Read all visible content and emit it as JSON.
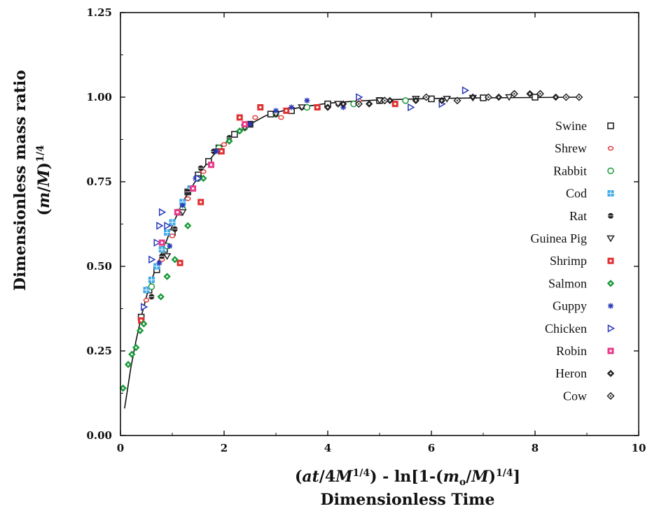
{
  "chart_data": {
    "type": "scatter",
    "xlabel_line1_parts": [
      "(",
      "at",
      "/4",
      "M",
      "1/4",
      ") - ln[1-(",
      "m",
      "o",
      "/",
      "M",
      ")",
      "1/4",
      "]"
    ],
    "xlabel_line2": "Dimensionless Time",
    "ylabel_line1": "Dimensionless mass ratio",
    "ylabel_line2_parts": [
      "(",
      "m",
      "/",
      "M",
      ")",
      "1/4"
    ],
    "xlim": [
      0,
      10
    ],
    "ylim": [
      0.0,
      1.25
    ],
    "x_ticks": [
      0,
      2,
      4,
      6,
      8,
      10
    ],
    "x_tick_labels": [
      "0",
      "2",
      "4",
      "6",
      "8",
      "10"
    ],
    "y_ticks": [
      0,
      0.25,
      0.5,
      0.75,
      1.0,
      1.25
    ],
    "y_tick_labels": [
      "0.00",
      "0.25",
      "0.50",
      "0.75",
      "1.00",
      "1.25"
    ],
    "grid": false,
    "legend_position": "right",
    "curve": {
      "x": [
        0.08,
        0.2,
        0.3,
        0.4,
        0.5,
        0.6,
        0.7,
        0.8,
        0.9,
        1.0,
        1.2,
        1.4,
        1.6,
        1.8,
        2.0,
        2.2,
        2.5,
        2.8,
        3.0,
        3.3,
        3.6,
        4.0,
        4.5,
        5.0,
        6.0,
        7.0,
        8.0,
        8.85
      ],
      "y": [
        0.08,
        0.2,
        0.28,
        0.35,
        0.41,
        0.46,
        0.5,
        0.54,
        0.58,
        0.62,
        0.69,
        0.74,
        0.79,
        0.83,
        0.86,
        0.89,
        0.92,
        0.945,
        0.955,
        0.965,
        0.973,
        0.982,
        0.988,
        0.992,
        0.996,
        0.998,
        0.999,
        1.0
      ]
    },
    "series": [
      {
        "name": "Swine",
        "marker": "square",
        "color": "#222222",
        "x": [
          0.4,
          0.55,
          0.7,
          0.85,
          1.0,
          1.15,
          1.3,
          1.5,
          1.7,
          1.9,
          2.2,
          2.5,
          2.9,
          3.3,
          4.0,
          5.0,
          6.0,
          7.0,
          8.0
        ],
        "y": [
          0.35,
          0.43,
          0.49,
          0.55,
          0.6,
          0.66,
          0.72,
          0.77,
          0.81,
          0.85,
          0.89,
          0.92,
          0.95,
          0.96,
          0.98,
          0.99,
          0.995,
          0.998,
          1.0
        ]
      },
      {
        "name": "Shrew",
        "marker": "circle-small",
        "color": "#e03030",
        "x": [
          0.5,
          0.8,
          1.0,
          1.3,
          1.6,
          2.0,
          2.6,
          3.1,
          3.8,
          4.6
        ],
        "y": [
          0.4,
          0.52,
          0.59,
          0.7,
          0.78,
          0.86,
          0.94,
          0.94,
          0.97,
          0.99
        ]
      },
      {
        "name": "Rabbit",
        "marker": "circle",
        "color": "#1a9a3a",
        "x": [
          0.6,
          0.9,
          1.2,
          1.5,
          1.9,
          2.4,
          3.0,
          3.6,
          4.5,
          5.5
        ],
        "y": [
          0.44,
          0.56,
          0.67,
          0.76,
          0.85,
          0.91,
          0.95,
          0.97,
          0.98,
          0.99
        ]
      },
      {
        "name": "Cod",
        "marker": "square-grid",
        "color": "#3aa8e8",
        "x": [
          0.5,
          0.6,
          0.7,
          0.8,
          0.9,
          1.0,
          1.1,
          1.2,
          1.35
        ],
        "y": [
          0.43,
          0.46,
          0.5,
          0.55,
          0.6,
          0.63,
          0.66,
          0.69,
          0.73
        ]
      },
      {
        "name": "Rat",
        "marker": "filled-circle",
        "color": "#222222",
        "x": [
          0.6,
          0.8,
          1.05,
          1.3,
          1.55,
          1.8,
          2.1,
          2.5,
          3.0,
          3.5,
          4.2
        ],
        "y": [
          0.41,
          0.53,
          0.61,
          0.72,
          0.79,
          0.84,
          0.88,
          0.92,
          0.95,
          0.97,
          0.98
        ]
      },
      {
        "name": "Guinea Pig",
        "marker": "triangle-down",
        "color": "#222222",
        "x": [
          0.9,
          1.2,
          1.5,
          1.9,
          2.4,
          3.0,
          3.5,
          4.2,
          5.0,
          5.7,
          6.3,
          6.8,
          7.5
        ],
        "y": [
          0.53,
          0.66,
          0.76,
          0.84,
          0.91,
          0.95,
          0.97,
          0.98,
          0.99,
          0.995,
          0.995,
          0.998,
          1.0
        ]
      },
      {
        "name": "Shrimp",
        "marker": "filled-square",
        "color": "#e03030",
        "x": [
          0.4,
          1.15,
          1.55,
          1.95,
          2.3,
          2.7,
          3.2,
          3.8,
          5.3
        ],
        "y": [
          0.34,
          0.51,
          0.69,
          0.84,
          0.94,
          0.97,
          0.96,
          0.97,
          0.98
        ]
      },
      {
        "name": "Salmon",
        "marker": "diamond",
        "color": "#1a9a3a",
        "x": [
          0.05,
          0.15,
          0.22,
          0.3,
          0.38,
          0.45,
          0.78,
          0.9,
          1.05,
          1.3,
          1.6,
          2.1,
          2.3
        ],
        "y": [
          0.14,
          0.21,
          0.24,
          0.26,
          0.31,
          0.33,
          0.41,
          0.47,
          0.52,
          0.62,
          0.76,
          0.87,
          0.9
        ]
      },
      {
        "name": "Guppy",
        "marker": "asterisk",
        "color": "#2a3ab8",
        "x": [
          0.75,
          0.95,
          1.2,
          1.45,
          1.85,
          2.5,
          3.0,
          3.3,
          3.6,
          4.3
        ],
        "y": [
          0.51,
          0.56,
          0.68,
          0.76,
          0.84,
          0.92,
          0.96,
          0.97,
          0.99,
          0.97
        ]
      },
      {
        "name": "Chicken",
        "marker": "triangle-right",
        "color": "#2a3ab8",
        "x": [
          0.45,
          0.6,
          0.7,
          0.75,
          0.8,
          0.9,
          1.5,
          4.6,
          5.6,
          6.2,
          6.65
        ],
        "y": [
          0.38,
          0.52,
          0.57,
          0.62,
          0.66,
          0.62,
          0.76,
          1.0,
          0.97,
          0.98,
          1.02
        ]
      },
      {
        "name": "Robin",
        "marker": "filled-square",
        "color": "#e83a8a",
        "x": [
          0.8,
          1.1,
          1.4,
          1.75,
          2.4
        ],
        "y": [
          0.57,
          0.66,
          0.73,
          0.8,
          0.92
        ]
      },
      {
        "name": "Heron",
        "marker": "diamond",
        "color": "#222222",
        "x": [
          4.0,
          4.3,
          4.8,
          5.2,
          5.7,
          6.2,
          6.8,
          7.3,
          7.9,
          8.4
        ],
        "y": [
          0.97,
          0.98,
          0.98,
          0.99,
          0.99,
          0.99,
          1.0,
          1.0,
          1.01,
          1.0
        ]
      },
      {
        "name": "Cow",
        "marker": "diamond-open",
        "color": "#222222",
        "x": [
          4.6,
          5.1,
          5.9,
          6.5,
          7.1,
          7.6,
          8.1,
          8.6,
          8.85
        ],
        "y": [
          0.98,
          0.99,
          1.0,
          0.99,
          1.0,
          1.01,
          1.01,
          1.0,
          1.0
        ]
      }
    ]
  }
}
